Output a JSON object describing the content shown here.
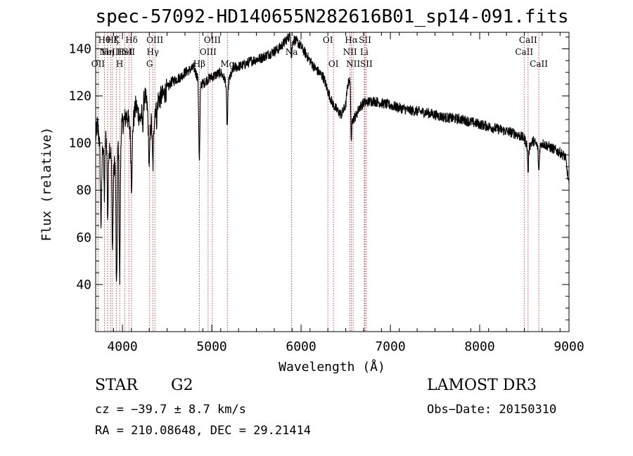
{
  "chart_data": {
    "type": "line",
    "title": "spec-57092-HD140655N282616B01_sp14-091.fits",
    "xlabel": "Wavelength (Å)",
    "ylabel": "Flux (relative)",
    "xlim": [
      3700,
      9000
    ],
    "ylim": [
      20,
      147
    ],
    "xticks": [
      4000,
      5000,
      6000,
      7000,
      8000,
      9000
    ],
    "yticks": [
      40,
      60,
      80,
      100,
      120,
      140
    ],
    "spectrum_anchors": {
      "x": [
        3700,
        3720,
        3760,
        3800,
        3860,
        3900,
        3960,
        4000,
        4050,
        4100,
        4150,
        4200,
        4250,
        4300,
        4340,
        4380,
        4450,
        4550,
        4650,
        4700,
        4800,
        4861,
        4900,
        4950,
        5000,
        5100,
        5175,
        5250,
        5350,
        5450,
        5550,
        5650,
        5750,
        5820,
        5880,
        5893,
        5920,
        5980,
        6050,
        6150,
        6250,
        6300,
        6350,
        6400,
        6450,
        6500,
        6520,
        6540,
        6563,
        6580,
        6620,
        6650,
        6700,
        6800,
        6900,
        7000,
        7200,
        7400,
        7600,
        7800,
        8000,
        8200,
        8400,
        8500,
        8542,
        8600,
        8662,
        8700,
        8800,
        8900,
        8960,
        9000
      ],
      "y": [
        102,
        108,
        96,
        104,
        98,
        88,
        104,
        108,
        112,
        104,
        116,
        110,
        120,
        112,
        108,
        118,
        120,
        126,
        128,
        130,
        132,
        126,
        125,
        127,
        128,
        130,
        125,
        132,
        133,
        135,
        136,
        138,
        140,
        143,
        146,
        142,
        144,
        142,
        138,
        132,
        128,
        122,
        117,
        114,
        112,
        116,
        124,
        127,
        123,
        110,
        112,
        115,
        117,
        118,
        117,
        116,
        114,
        113,
        111,
        110,
        108,
        106,
        104,
        102,
        98,
        101,
        98,
        100,
        98,
        96,
        94,
        82
      ]
    },
    "absorption_features": [
      {
        "x": 3760,
        "depth": 30,
        "width": 10
      },
      {
        "x": 3798,
        "depth": 26,
        "width": 8
      },
      {
        "x": 3835,
        "depth": 32,
        "width": 8
      },
      {
        "x": 3889,
        "depth": 36,
        "width": 8
      },
      {
        "x": 3934,
        "depth": 60,
        "width": 9
      },
      {
        "x": 3969,
        "depth": 64,
        "width": 9
      },
      {
        "x": 4102,
        "depth": 22,
        "width": 10
      },
      {
        "x": 4227,
        "depth": 8,
        "width": 8
      },
      {
        "x": 4300,
        "depth": 20,
        "width": 12
      },
      {
        "x": 4341,
        "depth": 18,
        "width": 10
      },
      {
        "x": 4384,
        "depth": 8,
        "width": 8
      },
      {
        "x": 4861,
        "depth": 34,
        "width": 9
      },
      {
        "x": 5173,
        "depth": 18,
        "width": 9
      },
      {
        "x": 5893,
        "depth": 6,
        "width": 8
      },
      {
        "x": 6563,
        "depth": 24,
        "width": 7
      },
      {
        "x": 8542,
        "depth": 10,
        "width": 8
      },
      {
        "x": 8662,
        "depth": 10,
        "width": 8
      }
    ],
    "noise_amplitude": 4.5,
    "spectral_lines": [
      {
        "x": 3727,
        "labels": [
          "OII"
        ],
        "rows": [
          2
        ]
      },
      {
        "x": 3798,
        "labels": [
          "Hθ"
        ],
        "rows": [
          0
        ]
      },
      {
        "x": 3835,
        "labels": [
          "Hη"
        ],
        "rows": [
          1
        ]
      },
      {
        "x": 3869,
        "labels": [
          "NeIII"
        ],
        "rows": [
          1
        ]
      },
      {
        "x": 3889,
        "labels": [
          "Hζ"
        ],
        "rows": [
          0
        ]
      },
      {
        "x": 3934,
        "labels": [
          "K"
        ],
        "rows": [
          0
        ]
      },
      {
        "x": 3969,
        "labels": [
          "H"
        ],
        "rows": [
          2
        ]
      },
      {
        "x": 4026,
        "labels": [
          "HeI"
        ],
        "rows": [
          1
        ]
      },
      {
        "x": 4072,
        "labels": [
          "SII"
        ],
        "rows": [
          1
        ]
      },
      {
        "x": 4102,
        "labels": [
          "Hδ"
        ],
        "rows": [
          0
        ]
      },
      {
        "x": 4304,
        "labels": [
          "G"
        ],
        "rows": [
          2
        ]
      },
      {
        "x": 4340,
        "labels": [
          "Hγ"
        ],
        "rows": [
          1
        ]
      },
      {
        "x": 4363,
        "labels": [
          "OIII"
        ],
        "rows": [
          0
        ]
      },
      {
        "x": 4861,
        "labels": [
          "Hβ"
        ],
        "rows": [
          2
        ]
      },
      {
        "x": 4959,
        "labels": [
          "OIII"
        ],
        "rows": [
          1
        ]
      },
      {
        "x": 5007,
        "labels": [
          "OIII"
        ],
        "rows": [
          0
        ]
      },
      {
        "x": 5175,
        "labels": [
          "Mg"
        ],
        "rows": [
          2
        ]
      },
      {
        "x": 5894,
        "labels": [
          "Na"
        ],
        "rows": [
          1
        ]
      },
      {
        "x": 6300,
        "labels": [
          "OI"
        ],
        "rows": [
          0
        ]
      },
      {
        "x": 6363,
        "labels": [
          "OI"
        ],
        "rows": [
          2
        ]
      },
      {
        "x": 6548,
        "labels": [
          "NII"
        ],
        "rows": [
          1
        ]
      },
      {
        "x": 6563,
        "labels": [
          "Hα"
        ],
        "rows": [
          0
        ]
      },
      {
        "x": 6583,
        "labels": [
          "NII"
        ],
        "rows": [
          2
        ]
      },
      {
        "x": 6708,
        "labels": [
          "Li"
        ],
        "rows": [
          1
        ]
      },
      {
        "x": 6716,
        "labels": [
          "SII"
        ],
        "rows": [
          0
        ]
      },
      {
        "x": 6731,
        "labels": [
          "SII"
        ],
        "rows": [
          2
        ]
      },
      {
        "x": 8498,
        "labels": [
          "CaII"
        ],
        "rows": [
          1
        ]
      },
      {
        "x": 8542,
        "labels": [
          "CaII"
        ],
        "rows": [
          0
        ]
      },
      {
        "x": 8662,
        "labels": [
          "CaII"
        ],
        "rows": [
          2
        ]
      }
    ]
  },
  "info": {
    "object_class": "STAR",
    "subclass": "G2",
    "survey": "LAMOST DR3",
    "cz": "cz = −39.7 ± 8.7 km/s",
    "obs_date": "Obs−Date: 20150310",
    "radec": "RA = 210.08648, DEC =  29.21414"
  },
  "colors": {
    "spectrum": "#000000",
    "line_markers": "#b22222",
    "axes": "#000000"
  }
}
